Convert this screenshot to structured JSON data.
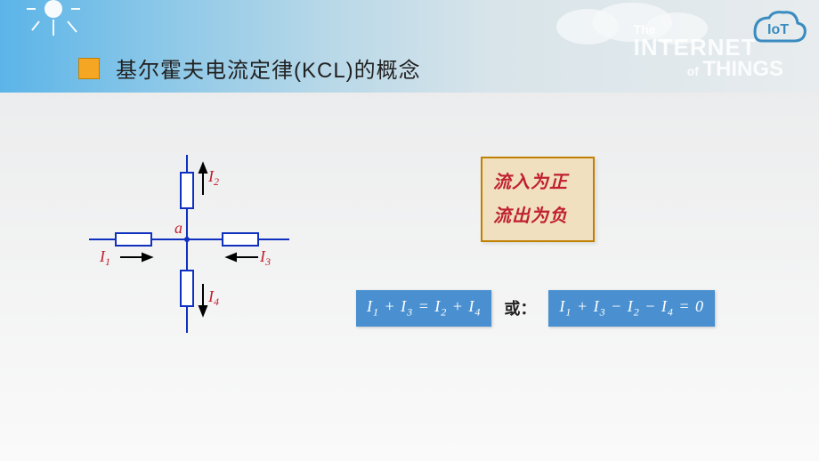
{
  "header": {
    "title": "基尔霍夫电流定律(KCL)的概念",
    "brand_the": "The",
    "brand_internet": "INTERNET",
    "brand_of": "of",
    "brand_things": "THINGS",
    "logo_text": "IoT",
    "colors": {
      "gradient_from": "#5bb4e8",
      "gradient_to": "#e8ecee",
      "square_fill": "#f5a623",
      "square_border": "#c08000",
      "logo_color": "#3a8cc0"
    }
  },
  "diagram": {
    "node_label": "a",
    "currents": {
      "I1": "I₁",
      "I2": "I₂",
      "I3": "I₃",
      "I4": "I₄"
    },
    "colors": {
      "wire": "#1030c0",
      "arrow": "#000000",
      "label": "#c02030",
      "node_label": "#c02030"
    },
    "resistor": {
      "length": 40,
      "width": 14
    },
    "line_width": 2
  },
  "rule_box": {
    "line1": "流入为正",
    "line2": "流出为负",
    "colors": {
      "border": "#c08000",
      "bg": "#f0e0c0",
      "text": "#c02030"
    }
  },
  "equations": {
    "eq1_html": "I<sub>1</sub> + I<sub>3</sub> = I<sub>2</sub> + I<sub>4</sub>",
    "or": "或：",
    "eq2_html": "I<sub>1</sub> + I<sub>3</sub> − I<sub>2</sub> − I<sub>4</sub> = 0",
    "colors": {
      "bg": "#4a90d0",
      "text": "#ffffff"
    }
  }
}
